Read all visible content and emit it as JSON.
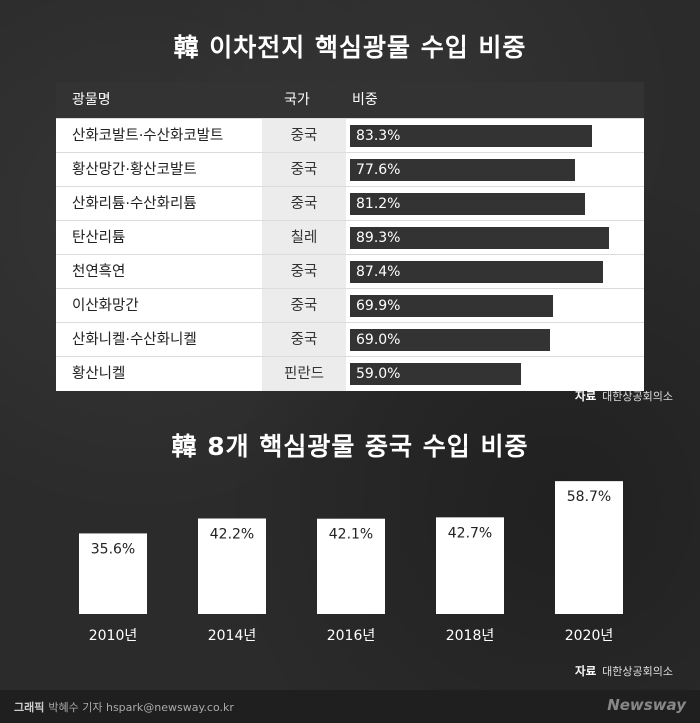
{
  "title1": "韓 이차전지 핵심광물 수입 비중",
  "table": {
    "headers": [
      "광물명",
      "국가",
      "비중"
    ],
    "rows": [
      {
        "name": "산화코발트·수산화코발트",
        "country": "중국",
        "share": 83.3,
        "label": "83.3%"
      },
      {
        "name": "황산망간·황산코발트",
        "country": "중국",
        "share": 77.6,
        "label": "77.6%"
      },
      {
        "name": "산화리튬·수산화리튬",
        "country": "중국",
        "share": 81.2,
        "label": "81.2%"
      },
      {
        "name": "탄산리튬",
        "country": "칠레",
        "share": 89.3,
        "label": "89.3%"
      },
      {
        "name": "천연흑연",
        "country": "중국",
        "share": 87.4,
        "label": "87.4%"
      },
      {
        "name": "이산화망간",
        "country": "중국",
        "share": 69.9,
        "label": "69.9%"
      },
      {
        "name": "산화니켈·수산화니켈",
        "country": "중국",
        "share": 69.0,
        "label": "69.0%"
      },
      {
        "name": "황산니켈",
        "country": "핀란드",
        "share": 59.0,
        "label": "59.0%"
      }
    ]
  },
  "source1": {
    "label": "자료",
    "value": "대한상공회의소"
  },
  "title2": "韓 8개 핵심광물 중국 수입 비중",
  "chart_data": {
    "type": "bar",
    "categories": [
      "2010년",
      "2014년",
      "2016년",
      "2018년",
      "2020년"
    ],
    "values": [
      35.6,
      42.2,
      42.1,
      42.7,
      58.7
    ],
    "value_labels": [
      "35.6%",
      "42.2%",
      "42.1%",
      "42.7%",
      "58.7%"
    ],
    "title": "韓 8개 핵심광물 중국 수입 비중",
    "ylim": [
      0,
      60
    ],
    "bar_color": "#ffffff",
    "grid": false
  },
  "source2": {
    "label": "자료",
    "value": "대한상공회의소"
  },
  "footer": {
    "credit_label": "그래픽",
    "credit_text": "박혜수 기자 hspark@newsway.co.kr",
    "logo": "Newsway"
  }
}
